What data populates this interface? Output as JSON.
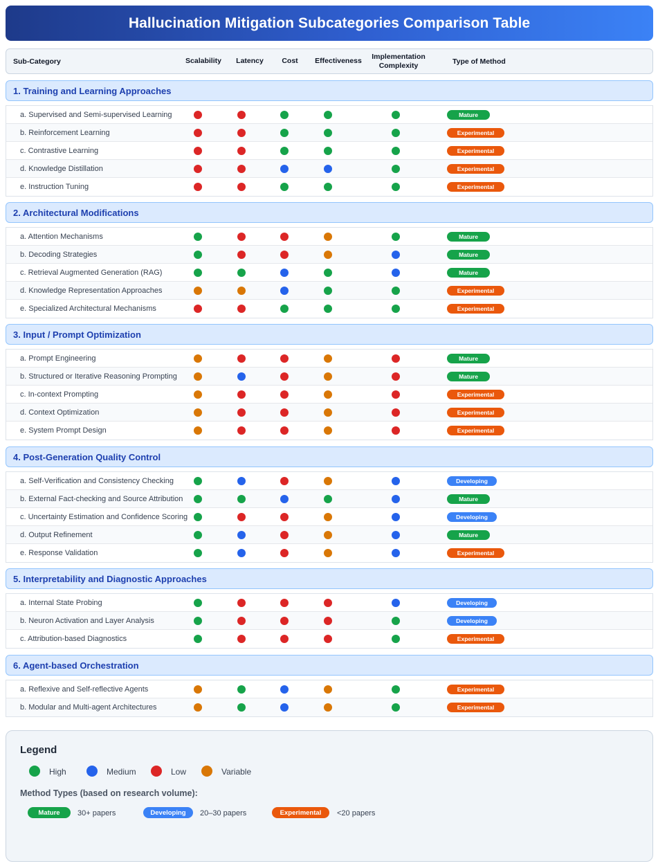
{
  "title": "Hallucination Mitigation Subcategories Comparison Table",
  "columns": {
    "subcategory": "Sub-Category",
    "scalability": "Scalability",
    "latency": "Latency",
    "cost": "Cost",
    "effectiveness": "Effectiveness",
    "complexity": "Implementation Complexity",
    "method": "Type of Method"
  },
  "colors": {
    "High": "#16a34a",
    "Medium": "#2563eb",
    "Low": "#dc2626",
    "Variable": "#d97706",
    "Mature": "#16a34a",
    "Developing": "#3b82f6",
    "Experimental": "#ea580c"
  },
  "sections": [
    {
      "title": "1. Training and Learning Approaches",
      "rows": [
        {
          "label": "a. Supervised and Semi-supervised Learning",
          "ratings": [
            "Low",
            "Low",
            "High",
            "High",
            "High"
          ],
          "method": "Mature"
        },
        {
          "label": "b. Reinforcement Learning",
          "ratings": [
            "Low",
            "Low",
            "High",
            "High",
            "High"
          ],
          "method": "Experimental"
        },
        {
          "label": "c. Contrastive Learning",
          "ratings": [
            "Low",
            "Low",
            "High",
            "High",
            "High"
          ],
          "method": "Experimental"
        },
        {
          "label": "d. Knowledge Distillation",
          "ratings": [
            "Low",
            "Low",
            "Medium",
            "Medium",
            "High"
          ],
          "method": "Experimental"
        },
        {
          "label": "e. Instruction Tuning",
          "ratings": [
            "Low",
            "Low",
            "High",
            "High",
            "High"
          ],
          "method": "Experimental"
        }
      ]
    },
    {
      "title": "2. Architectural Modifications",
      "rows": [
        {
          "label": "a. Attention Mechanisms",
          "ratings": [
            "High",
            "Low",
            "Low",
            "Variable",
            "High"
          ],
          "method": "Mature"
        },
        {
          "label": "b. Decoding Strategies",
          "ratings": [
            "High",
            "Low",
            "Low",
            "Variable",
            "Medium"
          ],
          "method": "Mature"
        },
        {
          "label": "c. Retrieval Augmented Generation (RAG)",
          "ratings": [
            "High",
            "High",
            "Medium",
            "High",
            "Medium"
          ],
          "method": "Mature"
        },
        {
          "label": "d. Knowledge Representation Approaches",
          "ratings": [
            "Variable",
            "Variable",
            "Medium",
            "High",
            "High"
          ],
          "method": "Experimental"
        },
        {
          "label": "e. Specialized Architectural Mechanisms",
          "ratings": [
            "Low",
            "Low",
            "High",
            "High",
            "High"
          ],
          "method": "Experimental"
        }
      ]
    },
    {
      "title": "3. Input / Prompt Optimization",
      "rows": [
        {
          "label": "a. Prompt Engineering",
          "ratings": [
            "Variable",
            "Low",
            "Low",
            "Variable",
            "Low"
          ],
          "method": "Mature"
        },
        {
          "label": "b. Structured or Iterative Reasoning Prompting",
          "ratings": [
            "Variable",
            "Medium",
            "Low",
            "Variable",
            "Low"
          ],
          "method": "Mature"
        },
        {
          "label": "c. In-context Prompting",
          "ratings": [
            "Variable",
            "Low",
            "Low",
            "Variable",
            "Low"
          ],
          "method": "Experimental"
        },
        {
          "label": "d. Context Optimization",
          "ratings": [
            "Variable",
            "Low",
            "Low",
            "Variable",
            "Low"
          ],
          "method": "Experimental"
        },
        {
          "label": "e. System Prompt Design",
          "ratings": [
            "Variable",
            "Low",
            "Low",
            "Variable",
            "Low"
          ],
          "method": "Experimental"
        }
      ]
    },
    {
      "title": "4. Post-Generation Quality Control",
      "rows": [
        {
          "label": "a. Self-Verification and Consistency Checking",
          "ratings": [
            "High",
            "Medium",
            "Low",
            "Variable",
            "Medium"
          ],
          "method": "Developing"
        },
        {
          "label": "b. External Fact-checking and Source Attribution",
          "ratings": [
            "High",
            "High",
            "Medium",
            "High",
            "Medium"
          ],
          "method": "Mature"
        },
        {
          "label": "c. Uncertainty Estimation and Confidence Scoring",
          "ratings": [
            "High",
            "Low",
            "Low",
            "Variable",
            "Medium"
          ],
          "method": "Developing"
        },
        {
          "label": "d. Output Refinement",
          "ratings": [
            "High",
            "Medium",
            "Low",
            "Variable",
            "Medium"
          ],
          "method": "Mature"
        },
        {
          "label": "e. Response Validation",
          "ratings": [
            "High",
            "Medium",
            "Low",
            "Variable",
            "Medium"
          ],
          "method": "Experimental"
        }
      ]
    },
    {
      "title": "5. Interpretability and Diagnostic Approaches",
      "rows": [
        {
          "label": "a. Internal State Probing",
          "ratings": [
            "High",
            "Low",
            "Low",
            "Low",
            "Medium"
          ],
          "method": "Developing"
        },
        {
          "label": "b. Neuron Activation and Layer Analysis",
          "ratings": [
            "High",
            "Low",
            "Low",
            "Low",
            "High"
          ],
          "method": "Developing"
        },
        {
          "label": "c. Attribution-based Diagnostics",
          "ratings": [
            "High",
            "Low",
            "Low",
            "Low",
            "High"
          ],
          "method": "Experimental"
        }
      ]
    },
    {
      "title": "6. Agent-based Orchestration",
      "rows": [
        {
          "label": "a. Reflexive and Self-reflective Agents",
          "ratings": [
            "Variable",
            "High",
            "Medium",
            "Variable",
            "High"
          ],
          "method": "Experimental"
        },
        {
          "label": "b. Modular and Multi-agent Architectures",
          "ratings": [
            "Variable",
            "High",
            "Medium",
            "Variable",
            "High"
          ],
          "method": "Experimental"
        }
      ]
    }
  ],
  "legend": {
    "title": "Legend",
    "ratings": [
      "High",
      "Medium",
      "Low",
      "Variable"
    ],
    "method_title": "Method Types (based on research volume):",
    "methods": [
      {
        "name": "Mature",
        "desc": "30+ papers"
      },
      {
        "name": "Developing",
        "desc": "20–30 papers"
      },
      {
        "name": "Experimental",
        "desc": "<20 papers"
      }
    ]
  }
}
